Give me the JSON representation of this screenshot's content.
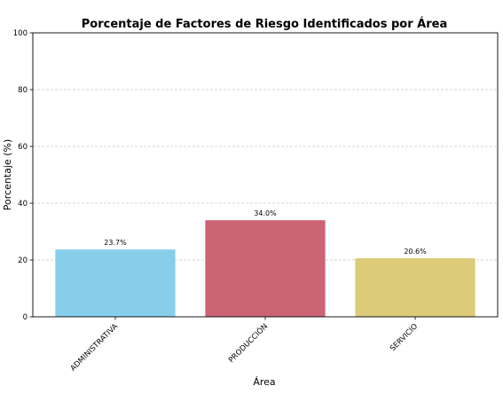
{
  "chart_data": {
    "type": "bar",
    "title": "Porcentaje de Factores de Riesgo Identificados por Área",
    "xlabel": "Área",
    "ylabel": "Porcentaje (%)",
    "ylim": [
      0,
      100
    ],
    "yticks": [
      0,
      20,
      40,
      60,
      80,
      100
    ],
    "grid": "y-dashed",
    "categories": [
      "ADMINISTRATIVA",
      "PRODUCCIÓN",
      "SERVICIO"
    ],
    "values": [
      23.7,
      34.0,
      20.6
    ],
    "value_labels": [
      "23.7%",
      "34.0%",
      "20.6%"
    ],
    "colors": [
      "#87ceeb",
      "#cb6474",
      "#dccb78"
    ]
  }
}
